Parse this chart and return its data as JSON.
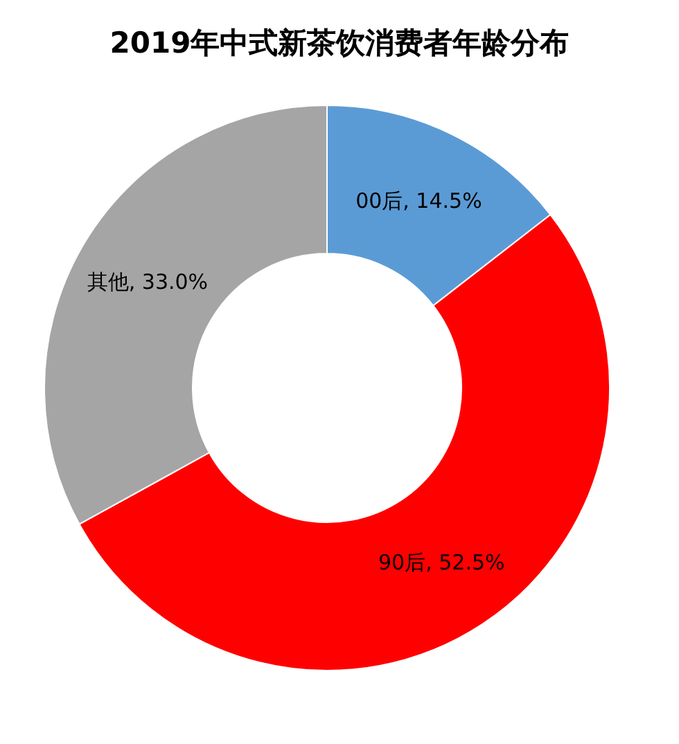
{
  "chart_data": {
    "type": "donut",
    "title": "2019年中式新茶饮消费者年龄分布",
    "categories": [
      "00后",
      "90后",
      "其他"
    ],
    "values": [
      14.5,
      52.5,
      33.0
    ],
    "colors": [
      "#5b9bd5",
      "#ff0000",
      "#a5a5a5"
    ],
    "value_labels": [
      "14.5%",
      "52.5%",
      "33.0%"
    ]
  }
}
